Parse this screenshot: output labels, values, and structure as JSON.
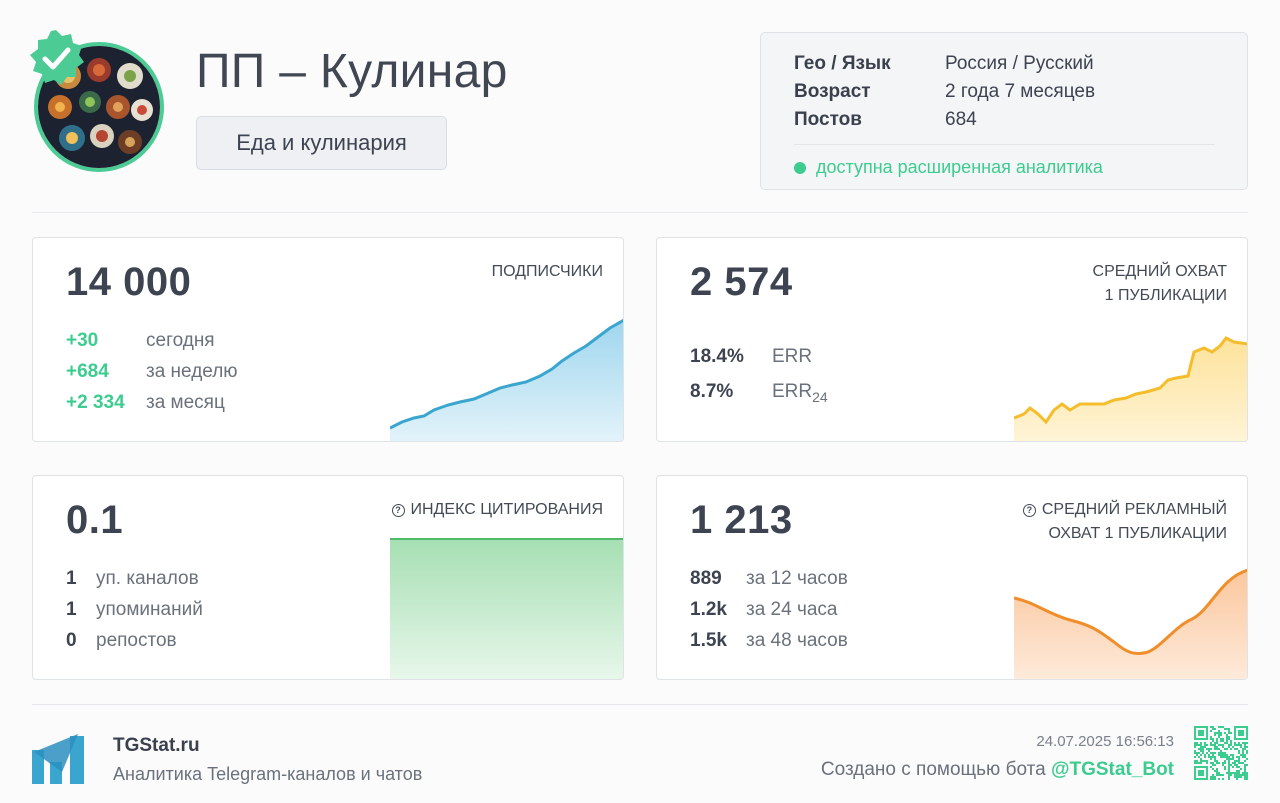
{
  "channel": {
    "title": "ПП – Кулинар",
    "category": "Еда и кулинария",
    "avatar_icon": "food-plates-avatar",
    "verified_icon": "verified-badge-icon"
  },
  "info": {
    "rows": [
      {
        "key": "Гео / Язык",
        "value": "Россия / Русский"
      },
      {
        "key": "Возраст",
        "value": "2 года 7 месяцев"
      },
      {
        "key": "Постов",
        "value": "684"
      }
    ],
    "analytics": "доступна расширенная аналитика"
  },
  "subscribers": {
    "value": "14 000",
    "label": "ПОДПИСЧИКИ",
    "stats": [
      {
        "num": "+30",
        "text": "сегодня"
      },
      {
        "num": "+684",
        "text": "за неделю"
      },
      {
        "num": "+2 334",
        "text": "за месяц"
      }
    ],
    "color": "#3aa5cf"
  },
  "reach": {
    "value": "2 574",
    "label1": "СРЕДНИЙ ОХВАТ",
    "label2": "1 ПУБЛИКАЦИИ",
    "stats": [
      {
        "num": "18.4%",
        "text": "ERR",
        "sub": ""
      },
      {
        "num": "8.7%",
        "text": "ERR",
        "sub": "24"
      }
    ],
    "color": "#f5bd2b"
  },
  "citation": {
    "value": "0.1",
    "label": "ИНДЕКС ЦИТИРОВАНИЯ",
    "stats": [
      {
        "num": "1",
        "text": "уп. каналов"
      },
      {
        "num": "1",
        "text": "упоминаний"
      },
      {
        "num": "0",
        "text": "репостов"
      }
    ],
    "color": "#4dbb6a"
  },
  "ad_reach": {
    "value": "1 213",
    "label1": "СРЕДНИЙ РЕКЛАМНЫЙ",
    "label2": "ОХВАТ 1 ПУБЛИКАЦИИ",
    "stats": [
      {
        "num": "889",
        "text": "за 12 часов"
      },
      {
        "num": "1.2k",
        "text": "за 24 часа"
      },
      {
        "num": "1.5k",
        "text": "за 48 часов"
      }
    ],
    "color": "#ef8e2a"
  },
  "footer": {
    "brand": "TGStat.ru",
    "tagline": "Аналитика Telegram-каналов и чатов",
    "date": "24.07.2025 16:56:13",
    "created_prefix": "Создано с помощью бота ",
    "bot": "@TGStat_Bot",
    "logo_icon": "tgstat-logo-icon",
    "qr_icon": "qr-code-icon"
  }
}
